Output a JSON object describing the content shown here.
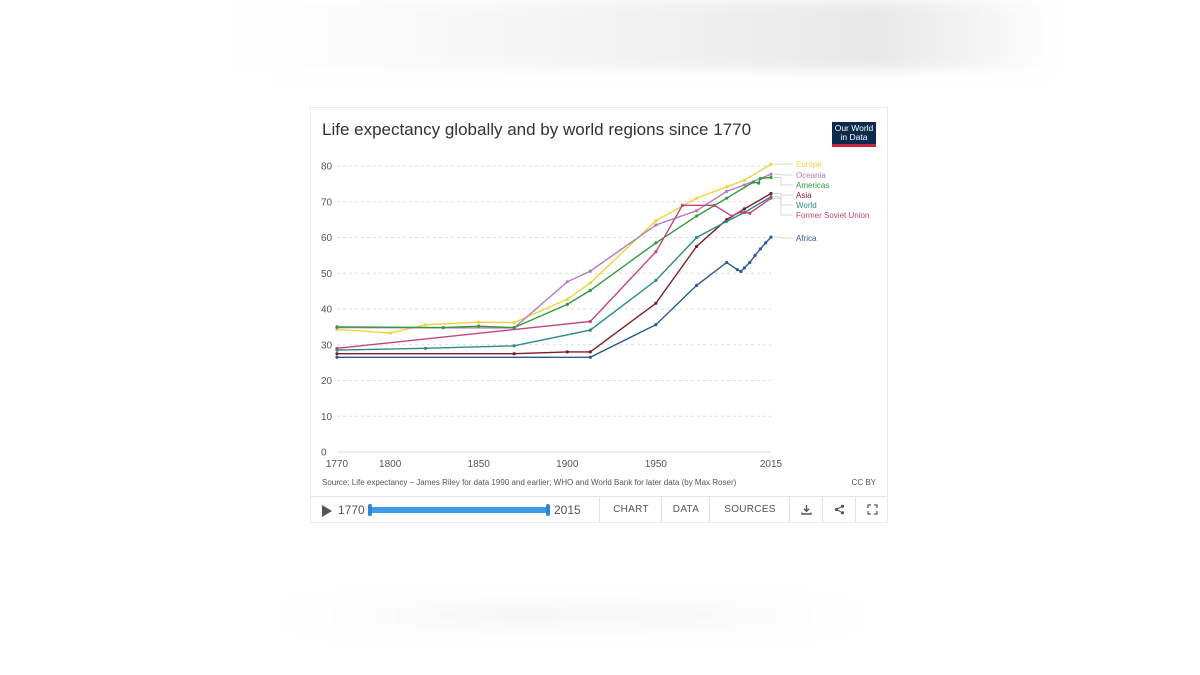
{
  "title": "Life expectancy globally and by world regions since 1770",
  "logo_text_line1": "Our World",
  "logo_text_line2": "in Data",
  "source": "Source: Life expectancy – James Riley for data 1990 and earlier; WHO and World Bank for later data (by Max Roser)",
  "license": "CC BY",
  "controls": {
    "start_year": "1770",
    "end_year": "2015",
    "chart_label": "CHART",
    "data_label": "DATA",
    "sources_label": "SOURCES",
    "download_icon": "download-icon",
    "share_icon": "share-icon",
    "fullscreen_icon": "fullscreen-icon"
  },
  "chart_data": {
    "type": "line",
    "title": "Life expectancy globally and by world regions since 1770",
    "xlabel": "",
    "ylabel": "",
    "xlim": [
      1770,
      2015
    ],
    "ylim": [
      0,
      80
    ],
    "x_ticks": [
      1770,
      1800,
      1850,
      1900,
      1950,
      2015
    ],
    "y_ticks": [
      0,
      10,
      20,
      30,
      40,
      50,
      60,
      70,
      80
    ],
    "grid": "horizontal dashed",
    "legend_placement": "right, labels at line ends",
    "series": [
      {
        "name": "Europe",
        "color": "#f2d23c",
        "points": [
          [
            1770,
            34.3
          ],
          [
            1800,
            33.3
          ],
          [
            1820,
            35.6
          ],
          [
            1850,
            36.3
          ],
          [
            1870,
            36.2
          ],
          [
            1900,
            42.7
          ],
          [
            1913,
            47.3
          ],
          [
            1950,
            64.7
          ],
          [
            1973,
            71.0
          ],
          [
            1990,
            74.2
          ],
          [
            2000,
            76.0
          ],
          [
            2015,
            80.5
          ]
        ]
      },
      {
        "name": "Oceania",
        "color": "#b47cbc",
        "points": [
          [
            1770,
            34.8
          ],
          [
            1870,
            34.7
          ],
          [
            1900,
            47.6
          ],
          [
            1913,
            50.6
          ],
          [
            1950,
            63.5
          ],
          [
            1973,
            67.5
          ],
          [
            1990,
            72.9
          ],
          [
            2000,
            74.7
          ],
          [
            2015,
            77.7
          ]
        ]
      },
      {
        "name": "Americas",
        "color": "#2e9a3e",
        "points": [
          [
            1770,
            35.0
          ],
          [
            1830,
            34.8
          ],
          [
            1850,
            35.2
          ],
          [
            1870,
            34.8
          ],
          [
            1900,
            41.3
          ],
          [
            1913,
            45.2
          ],
          [
            1950,
            58.5
          ],
          [
            1973,
            66.0
          ],
          [
            1990,
            71.0
          ],
          [
            2005,
            75.5
          ],
          [
            2008,
            75.2
          ],
          [
            2009,
            76.5
          ],
          [
            2015,
            76.8
          ]
        ]
      },
      {
        "name": "Asia",
        "color": "#7d1f2a",
        "points": [
          [
            1770,
            27.5
          ],
          [
            1870,
            27.5
          ],
          [
            1900,
            28.0
          ],
          [
            1913,
            28.0
          ],
          [
            1950,
            41.6
          ],
          [
            1973,
            57.5
          ],
          [
            1990,
            65.0
          ],
          [
            2000,
            68.0
          ],
          [
            2015,
            72.3
          ]
        ]
      },
      {
        "name": "World",
        "color": "#2d8a8a",
        "points": [
          [
            1770,
            28.5
          ],
          [
            1820,
            29.0
          ],
          [
            1870,
            29.7
          ],
          [
            1913,
            34.1
          ],
          [
            1950,
            48.0
          ],
          [
            1973,
            60.0
          ],
          [
            1990,
            64.5
          ],
          [
            2000,
            67.0
          ],
          [
            2015,
            71.4
          ]
        ]
      },
      {
        "name": "Former Soviet Union",
        "color": "#c2447c",
        "points": [
          [
            1770,
            29.0
          ],
          [
            1913,
            36.5
          ],
          [
            1950,
            56.0
          ],
          [
            1965,
            69.0
          ],
          [
            1983,
            69.0
          ],
          [
            1993,
            66.0
          ],
          [
            1998,
            67.2
          ],
          [
            2003,
            66.8
          ],
          [
            2015,
            71.0
          ]
        ]
      },
      {
        "name": "Africa",
        "color": "#2b5a94",
        "points": [
          [
            1770,
            26.5
          ],
          [
            1913,
            26.5
          ],
          [
            1950,
            35.6
          ],
          [
            1973,
            46.6
          ],
          [
            1990,
            53.0
          ],
          [
            1996,
            51.0
          ],
          [
            1998,
            50.5
          ],
          [
            2000,
            51.5
          ],
          [
            2003,
            53.0
          ],
          [
            2006,
            55.0
          ],
          [
            2009,
            56.8
          ],
          [
            2012,
            58.5
          ],
          [
            2015,
            60.1
          ]
        ]
      }
    ]
  }
}
